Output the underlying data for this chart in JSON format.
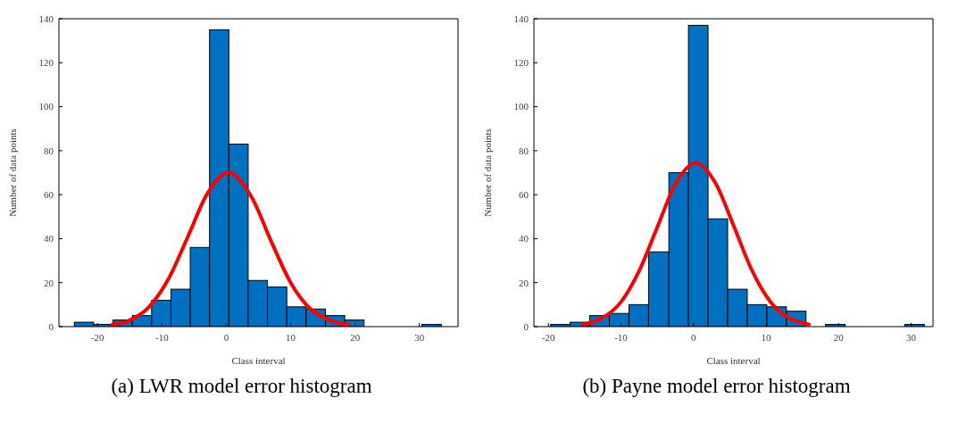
{
  "chart_data": [
    {
      "type": "histogram",
      "title": "(a) LWR model error histogram",
      "xlabel": "Class interval",
      "ylabel": "Number of data points",
      "bins": [
        -23.6,
        -20.6,
        -17.6,
        -14.6,
        -11.6,
        -8.6,
        -5.6,
        -2.6,
        0.4,
        3.4,
        6.4,
        9.4,
        12.4,
        15.4,
        18.4,
        21.4,
        30.4,
        33.4
      ],
      "values": [
        2,
        1,
        3,
        5,
        12,
        17,
        36,
        135,
        83,
        21,
        18,
        9,
        8,
        5,
        3,
        0,
        1
      ],
      "color": "#0070c0",
      "series": [
        {
          "type": "line",
          "color": "#ff0000",
          "x": [
            -17.7,
            -15,
            -12,
            -9,
            -6,
            -3,
            0.35,
            4,
            7,
            10,
            13,
            16,
            19
          ],
          "values": [
            0.9,
            2.9,
            9.0,
            21.6,
            40.7,
            60.2,
            70,
            58.5,
            38.6,
            20,
            8.2,
            3.0,
            0.8
          ]
        }
      ],
      "xlim": [
        -26,
        36
      ],
      "xticks": [
        -20,
        -10,
        0,
        10,
        20,
        30
      ],
      "ylim": [
        0,
        140
      ],
      "yticks": [
        0,
        20,
        40,
        60,
        80,
        100,
        120,
        140
      ],
      "grid": false,
      "legend": false
    },
    {
      "type": "histogram",
      "title": "(b) Payne model error histogram",
      "xlabel": "Class interval",
      "ylabel": "Number of data points",
      "bins": [
        -19.7,
        -17.0,
        -14.3,
        -11.6,
        -8.9,
        -6.2,
        -3.4,
        -0.7,
        2.0,
        4.7,
        7.4,
        10.1,
        12.8,
        15.5,
        18.2,
        20.9,
        29.1,
        31.8
      ],
      "values": [
        1,
        2,
        5,
        6,
        10,
        34,
        70,
        137,
        49,
        17,
        10,
        9,
        7,
        0,
        1,
        0,
        1
      ],
      "color": "#0070c0",
      "series": [
        {
          "type": "line",
          "color": "#ff0000",
          "x": [
            -15.2,
            -13,
            -10,
            -7.5,
            -5,
            -2.5,
            0.3,
            3,
            5.5,
            8,
            10.5,
            13,
            15.9
          ],
          "values": [
            1.0,
            3.2,
            11.2,
            25.3,
            45.2,
            64.8,
            74.5,
            65.4,
            46.1,
            25.9,
            11.7,
            4.2,
            1.0
          ]
        }
      ],
      "xlim": [
        -22,
        33
      ],
      "xticks": [
        -20,
        -10,
        0,
        10,
        20,
        30
      ],
      "ylim": [
        0,
        140
      ],
      "yticks": [
        0,
        20,
        40,
        60,
        80,
        100,
        120,
        140
      ],
      "grid": false,
      "legend": false
    }
  ]
}
